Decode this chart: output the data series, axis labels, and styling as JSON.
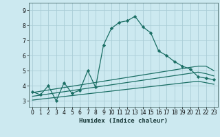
{
  "title": "",
  "xlabel": "Humidex (Indice chaleur)",
  "background_color": "#cce9f0",
  "grid_color": "#aacdd6",
  "line_color": "#1a6e64",
  "x_ticks": [
    0,
    1,
    2,
    3,
    4,
    5,
    6,
    7,
    8,
    9,
    10,
    11,
    12,
    13,
    14,
    15,
    16,
    17,
    18,
    19,
    20,
    21,
    22,
    23
  ],
  "y_ticks": [
    3,
    4,
    5,
    6,
    7,
    8,
    9
  ],
  "xlim": [
    -0.5,
    23.5
  ],
  "ylim": [
    2.6,
    9.5
  ],
  "series": [
    {
      "x": [
        0,
        1,
        2,
        3,
        4,
        5,
        6,
        7,
        8,
        9,
        10,
        11,
        12,
        13,
        14,
        15,
        16,
        17,
        18,
        19,
        20,
        21,
        22,
        23
      ],
      "y": [
        3.6,
        3.4,
        4.0,
        3.0,
        4.2,
        3.5,
        3.7,
        5.0,
        3.9,
        6.7,
        7.8,
        8.2,
        8.3,
        8.6,
        7.9,
        7.5,
        6.3,
        6.0,
        5.6,
        5.3,
        5.1,
        4.6,
        4.5,
        4.4
      ],
      "has_markers": true
    },
    {
      "x": [
        0,
        21,
        22,
        23
      ],
      "y": [
        3.55,
        5.3,
        5.3,
        5.0
      ],
      "has_markers": false
    },
    {
      "x": [
        0,
        21,
        22,
        23
      ],
      "y": [
        3.3,
        4.9,
        4.8,
        4.65
      ],
      "has_markers": false
    },
    {
      "x": [
        0,
        21,
        22,
        23
      ],
      "y": [
        3.05,
        4.3,
        4.2,
        4.1
      ],
      "has_markers": false
    }
  ]
}
